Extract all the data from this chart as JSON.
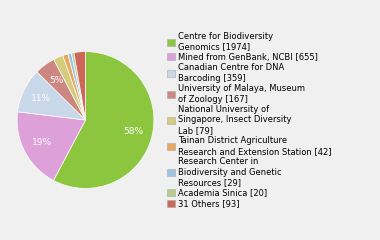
{
  "labels": [
    "Centre for Biodiversity\nGenomics [1974]",
    "Mined from GenBank, NCBI [655]",
    "Canadian Centre for DNA\nBarcoding [359]",
    "University of Malaya, Museum\nof Zoology [167]",
    "National University of\nSingapore, Insect Diversity\nLab [79]",
    "Tainan District Agriculture\nResearch and Extension Station [42]",
    "Research Center in\nBiodiversity and Genetic\nResources [29]",
    "Academia Sinica [20]",
    "31 Others [93]"
  ],
  "values": [
    1974,
    655,
    359,
    167,
    79,
    42,
    29,
    20,
    93
  ],
  "colors": [
    "#8cc63f",
    "#dda0d8",
    "#c8d8e8",
    "#cc8880",
    "#d4cc7c",
    "#e8a860",
    "#a0c4e0",
    "#b8cc90",
    "#cc6858"
  ],
  "show_pct_threshold": 3.5,
  "background_color": "#f0f0f0",
  "fontsize": 6.5,
  "legend_fontsize": 6.0
}
